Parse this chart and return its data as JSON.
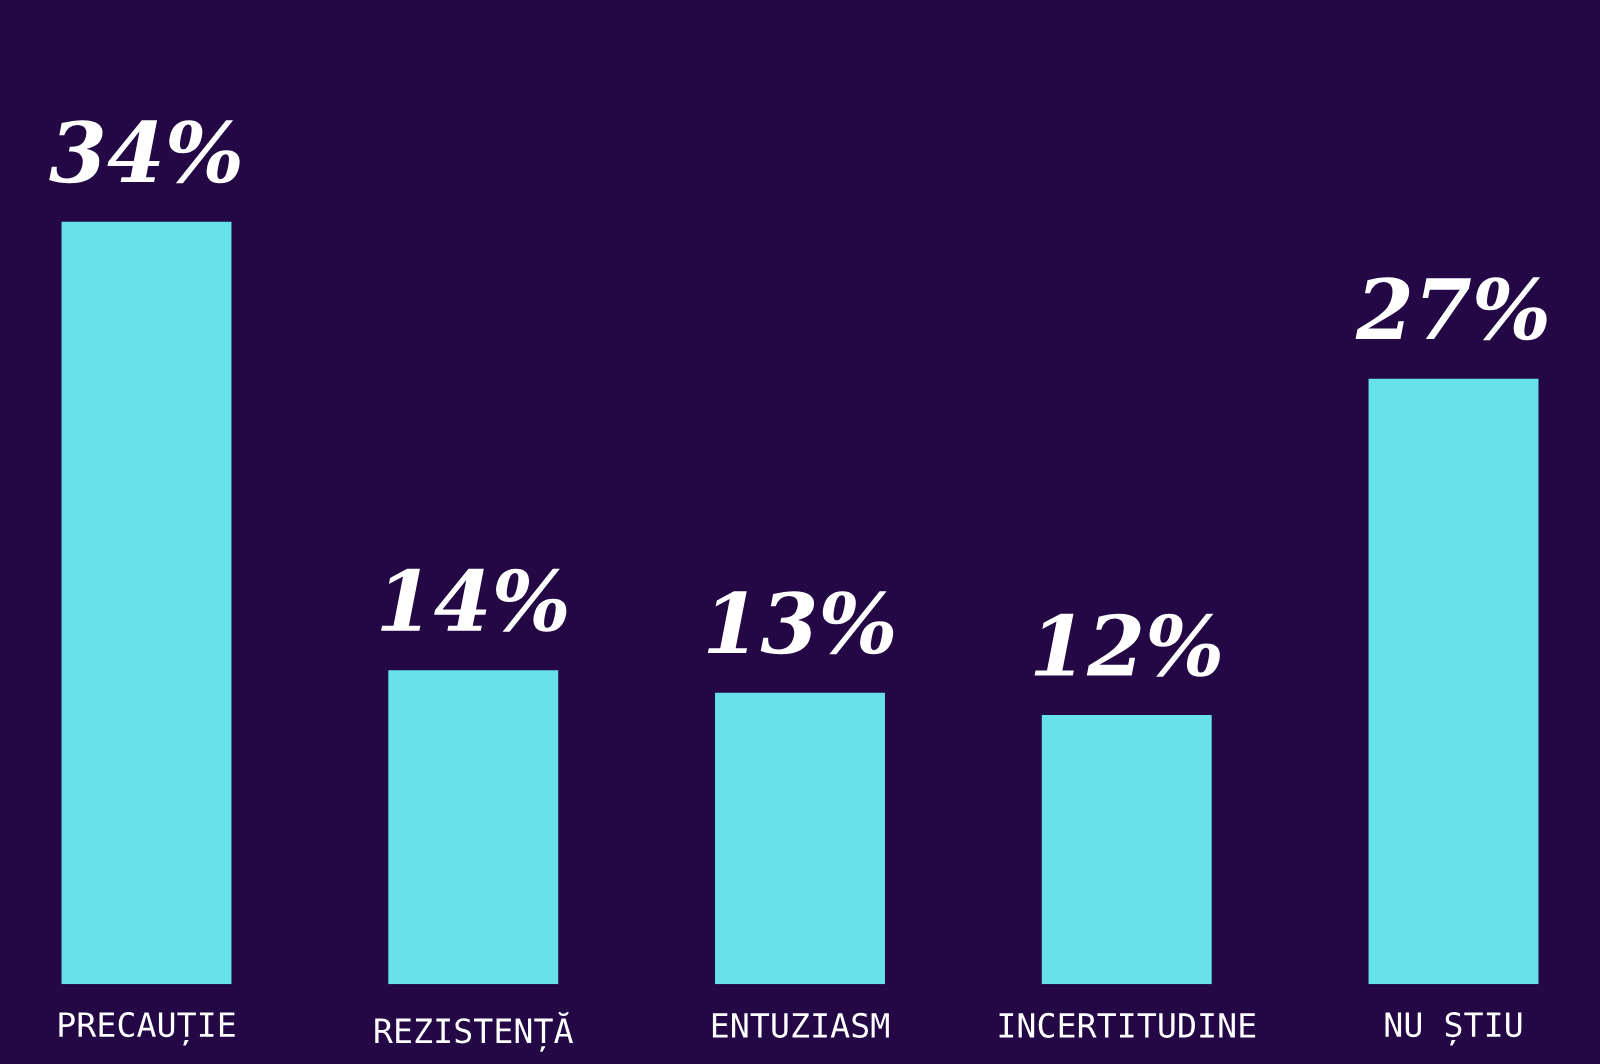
{
  "chart_data": {
    "type": "bar",
    "categories": [
      "PRECAUȚIE",
      "REZISTENȚĂ",
      "ENTUZIASM",
      "INCERTITUDINE",
      "NU ȘTIU"
    ],
    "values": [
      34,
      14,
      13,
      12,
      27
    ],
    "value_labels": [
      "34%",
      "14%",
      "13%",
      "12%",
      "27%"
    ],
    "color": "#68e2ea"
  }
}
